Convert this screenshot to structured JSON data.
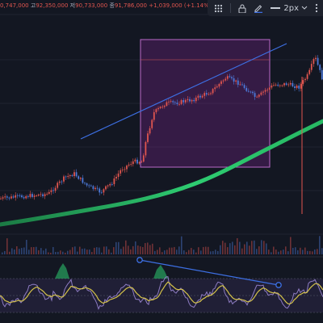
{
  "ohlc": {
    "partial_prev": "0,747,000",
    "high_label": "고",
    "high_value": "92,350,000",
    "low_label": "저",
    "low_value": "90,733,000",
    "close_label": "종",
    "close_value": "91,786,000",
    "change": "+1,039,000 (+1.14%)"
  },
  "toolbar": {
    "line_width_label": "2px",
    "icons": [
      "grid-icon",
      "lock-icon",
      "pencil-icon",
      "line-width-icon",
      "chevron-down-icon",
      "more-icon"
    ]
  },
  "colors": {
    "background": "#131722",
    "up": "#e0554f",
    "down": "#4d79d8",
    "ma_line": "#2ecc71",
    "selection_box": "#9c27b0",
    "trendline": "#3d6fe3",
    "rsi_line": "#8e7cc3",
    "signal_line": "#d4c24a"
  }
}
